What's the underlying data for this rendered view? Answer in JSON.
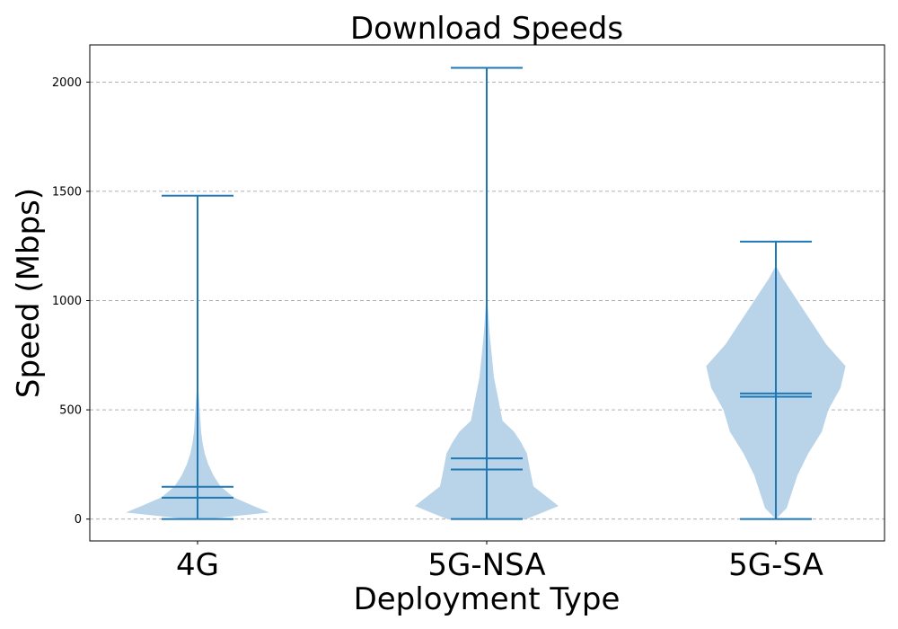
{
  "chart_data": {
    "type": "violin",
    "title": "Download Speeds",
    "xlabel": "Deployment Type",
    "ylabel": "Speed (Mbps)",
    "categories": [
      "4G",
      "5G-NSA",
      "5G-SA"
    ],
    "ylim": [
      -100,
      2170
    ],
    "yticks": [
      0,
      500,
      1000,
      1500,
      2000
    ],
    "grid": {
      "axis": "y",
      "style": "dashed",
      "color": "#b0b0b0"
    },
    "colors": {
      "body": "#b9d4e8",
      "lines": "#1f77b4"
    },
    "series": [
      {
        "category": "4G",
        "min": 0,
        "max": 1480,
        "mean": 148,
        "median": 98,
        "density": [
          [
            0,
            0.12
          ],
          [
            30,
            1.0
          ],
          [
            60,
            0.78
          ],
          [
            100,
            0.5
          ],
          [
            150,
            0.32
          ],
          [
            200,
            0.22
          ],
          [
            250,
            0.15
          ],
          [
            300,
            0.1
          ],
          [
            350,
            0.07
          ],
          [
            400,
            0.05
          ],
          [
            450,
            0.04
          ],
          [
            500,
            0.03
          ],
          [
            550,
            0.02
          ],
          [
            600,
            0.01
          ],
          [
            660,
            0.0
          ]
        ]
      },
      {
        "category": "5G-NSA",
        "min": 0,
        "max": 2065,
        "mean": 278,
        "median": 227,
        "density": [
          [
            0,
            0.55
          ],
          [
            60,
            1.0
          ],
          [
            150,
            0.65
          ],
          [
            230,
            0.6
          ],
          [
            300,
            0.56
          ],
          [
            350,
            0.48
          ],
          [
            400,
            0.38
          ],
          [
            450,
            0.22
          ],
          [
            550,
            0.16
          ],
          [
            650,
            0.1
          ],
          [
            750,
            0.07
          ],
          [
            850,
            0.04
          ],
          [
            950,
            0.02
          ],
          [
            1050,
            0.0
          ]
        ]
      },
      {
        "category": "5G-SA",
        "min": 0,
        "max": 1270,
        "mean": 575,
        "median": 560,
        "density": [
          [
            0,
            0.0
          ],
          [
            50,
            0.15
          ],
          [
            100,
            0.2
          ],
          [
            200,
            0.3
          ],
          [
            300,
            0.45
          ],
          [
            400,
            0.64
          ],
          [
            500,
            0.73
          ],
          [
            600,
            0.9
          ],
          [
            700,
            0.97
          ],
          [
            800,
            0.7
          ],
          [
            900,
            0.5
          ],
          [
            1000,
            0.3
          ],
          [
            1100,
            0.1
          ],
          [
            1160,
            0.0
          ]
        ]
      }
    ]
  }
}
